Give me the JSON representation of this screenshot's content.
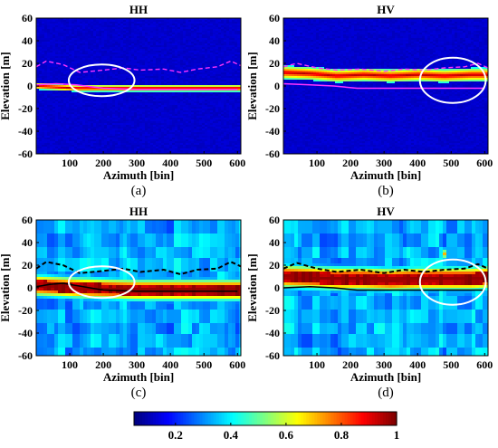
{
  "chart_data": [
    {
      "type": "heatmap",
      "title": "HH",
      "caption": "(a)",
      "xlabel": "Azimuth [bin]",
      "ylabel": "Elevation [m]",
      "xlim": [
        0,
        610
      ],
      "ylim": [
        -60,
        60
      ],
      "xticks": [
        100,
        200,
        300,
        400,
        500,
        600
      ],
      "yticks": [
        60,
        40,
        20,
        0,
        -20,
        -40,
        -60
      ],
      "style": "sharp",
      "band_center": [
        [
          0,
          0
        ],
        [
          60,
          -1
        ],
        [
          120,
          -2
        ],
        [
          200,
          -2
        ],
        [
          300,
          -2
        ],
        [
          400,
          -2
        ],
        [
          500,
          -2
        ],
        [
          600,
          -2
        ]
      ],
      "band_halfwidth": 3,
      "colormap_bg": "dark-blue",
      "top_envelope": [
        [
          0,
          17
        ],
        [
          30,
          22
        ],
        [
          80,
          19
        ],
        [
          130,
          12
        ],
        [
          200,
          14
        ],
        [
          260,
          16
        ],
        [
          310,
          14
        ],
        [
          380,
          15
        ],
        [
          430,
          12
        ],
        [
          480,
          15
        ],
        [
          540,
          17
        ],
        [
          580,
          22
        ],
        [
          610,
          18
        ]
      ],
      "bottom_line": [
        [
          0,
          1
        ],
        [
          60,
          2
        ],
        [
          120,
          1
        ],
        [
          200,
          -2
        ],
        [
          300,
          -3
        ],
        [
          400,
          -3
        ],
        [
          500,
          -3
        ],
        [
          600,
          -3
        ]
      ],
      "highlight": {
        "x": 195,
        "y": 5,
        "rx": 28,
        "ry": 14
      }
    },
    {
      "type": "heatmap",
      "title": "HV",
      "caption": "(b)",
      "xlabel": "Azimuth [bin]",
      "ylabel": "Elevation [m]",
      "xlim": [
        0,
        610
      ],
      "ylim": [
        -60,
        60
      ],
      "xticks": [
        100,
        200,
        300,
        400,
        500,
        600
      ],
      "yticks": [
        60,
        40,
        20,
        0,
        -20,
        -40,
        -60
      ],
      "style": "sharp",
      "band_center": [
        [
          0,
          12
        ],
        [
          80,
          11
        ],
        [
          160,
          9
        ],
        [
          240,
          10
        ],
        [
          320,
          9
        ],
        [
          400,
          10
        ],
        [
          480,
          9
        ],
        [
          560,
          10
        ],
        [
          610,
          10
        ]
      ],
      "band_halfwidth": 6,
      "colormap_bg": "dark-blue",
      "top_envelope": [
        [
          0,
          17
        ],
        [
          40,
          20
        ],
        [
          100,
          16
        ],
        [
          160,
          14
        ],
        [
          230,
          15
        ],
        [
          300,
          13
        ],
        [
          360,
          15
        ],
        [
          420,
          14
        ],
        [
          480,
          16
        ],
        [
          540,
          17
        ],
        [
          580,
          20
        ],
        [
          610,
          16
        ]
      ],
      "bottom_line": [
        [
          0,
          2
        ],
        [
          80,
          1
        ],
        [
          150,
          0
        ],
        [
          220,
          -2
        ],
        [
          300,
          -2
        ],
        [
          400,
          -2
        ],
        [
          500,
          -2
        ],
        [
          600,
          -2
        ]
      ],
      "highlight": {
        "x": 505,
        "y": 5,
        "rx": 28,
        "ry": 20
      }
    },
    {
      "type": "heatmap",
      "title": "HH",
      "caption": "(c)",
      "xlabel": "Azimuth [bin]",
      "ylabel": "Elevation [m]",
      "xlim": [
        0,
        610
      ],
      "ylim": [
        -60,
        60
      ],
      "xticks": [
        100,
        200,
        300,
        400,
        500,
        600
      ],
      "yticks": [
        60,
        40,
        20,
        0,
        -20,
        -40,
        -60
      ],
      "style": "blurry",
      "band_center": [
        [
          0,
          2
        ],
        [
          60,
          1
        ],
        [
          120,
          0
        ],
        [
          200,
          -1
        ],
        [
          300,
          -2
        ],
        [
          400,
          -2
        ],
        [
          500,
          -2
        ],
        [
          600,
          -2
        ]
      ],
      "band_halfwidth": 9,
      "colormap_bg": "blue-cyan",
      "top_envelope": [
        [
          0,
          17
        ],
        [
          30,
          23
        ],
        [
          80,
          20
        ],
        [
          130,
          13
        ],
        [
          200,
          15
        ],
        [
          260,
          17
        ],
        [
          310,
          14
        ],
        [
          380,
          16
        ],
        [
          430,
          12
        ],
        [
          480,
          16
        ],
        [
          540,
          17
        ],
        [
          580,
          23
        ],
        [
          610,
          19
        ]
      ],
      "bottom_line": [
        [
          0,
          1
        ],
        [
          40,
          3
        ],
        [
          80,
          4
        ],
        [
          120,
          2
        ],
        [
          200,
          -2
        ],
        [
          300,
          -3
        ],
        [
          400,
          -3
        ],
        [
          500,
          -3
        ],
        [
          600,
          -3
        ]
      ],
      "highlight": {
        "x": 195,
        "y": 5,
        "rx": 28,
        "ry": 14
      }
    },
    {
      "type": "heatmap",
      "title": "HV",
      "caption": "(d)",
      "xlabel": "Azimuth [bin]",
      "ylabel": "Elevation [m]",
      "xlim": [
        0,
        610
      ],
      "ylim": [
        -60,
        60
      ],
      "xticks": [
        100,
        200,
        300,
        400,
        500,
        600
      ],
      "yticks": [
        60,
        40,
        20,
        0,
        -20,
        -40,
        -60
      ],
      "style": "blurry",
      "band_center": [
        [
          0,
          10
        ],
        [
          80,
          9
        ],
        [
          160,
          8
        ],
        [
          240,
          8
        ],
        [
          320,
          7
        ],
        [
          400,
          8
        ],
        [
          480,
          8
        ],
        [
          560,
          8
        ],
        [
          610,
          9
        ]
      ],
      "band_halfwidth": 10,
      "colormap_bg": "blue-cyan",
      "top_envelope": [
        [
          0,
          17
        ],
        [
          40,
          22
        ],
        [
          100,
          17
        ],
        [
          160,
          14
        ],
        [
          230,
          16
        ],
        [
          300,
          13
        ],
        [
          360,
          16
        ],
        [
          420,
          14
        ],
        [
          480,
          16
        ],
        [
          540,
          17
        ],
        [
          580,
          21
        ],
        [
          610,
          17
        ]
      ],
      "bottom_line": [
        [
          0,
          0
        ],
        [
          80,
          1
        ],
        [
          150,
          0
        ],
        [
          220,
          -2
        ],
        [
          300,
          -2
        ],
        [
          400,
          -2
        ],
        [
          500,
          -2
        ],
        [
          600,
          -2
        ]
      ],
      "highlight": {
        "x": 505,
        "y": 5,
        "rx": 28,
        "ry": 20
      },
      "bright_spot": {
        "x": 480,
        "y": 30
      }
    }
  ],
  "colorbar": {
    "range": [
      0.05,
      1.0
    ],
    "ticks": [
      {
        "value": 0.2,
        "label": "0.2"
      },
      {
        "value": 0.4,
        "label": "0.4"
      },
      {
        "value": 0.6,
        "label": "0.6"
      },
      {
        "value": 0.8,
        "label": "0.8"
      },
      {
        "value": 1.0,
        "label": "1"
      }
    ],
    "colormap": "jet"
  },
  "colors": {
    "envelope_ab": "#ff33ff",
    "line_ab": "#ff33ff",
    "envelope_cd": "#000000",
    "line_cd": "#000000",
    "highlight": "#ffffff"
  }
}
